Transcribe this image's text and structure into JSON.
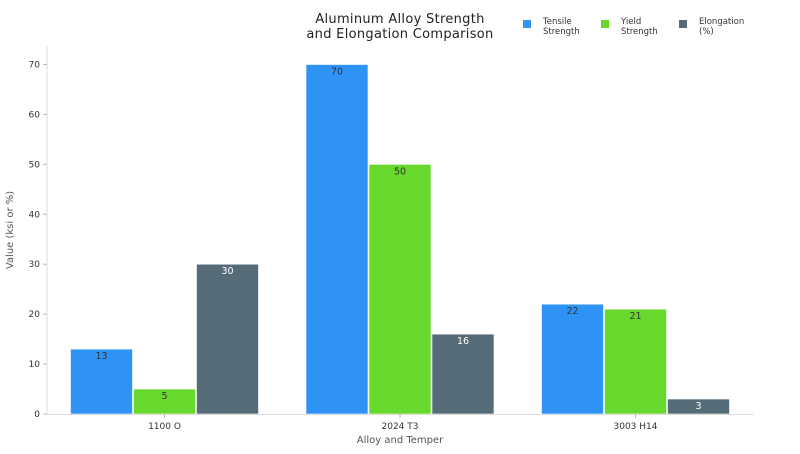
{
  "chart_data": {
    "type": "bar",
    "title_lines": [
      "Aluminum Alloy Strength",
      "and Elongation Comparison"
    ],
    "xlabel": "Alloy and Temper",
    "ylabel": "Value (ksi or %)",
    "categories": [
      "1100 O",
      "2024 T3",
      "3003 H14"
    ],
    "ylim": [
      0,
      70
    ],
    "yticks": [
      0,
      10,
      20,
      30,
      40,
      50,
      60,
      70
    ],
    "series": [
      {
        "name_lines": [
          "Tensile",
          "Strength"
        ],
        "color": "#2f93f5",
        "label_color": "#333333",
        "values": [
          13,
          70,
          22
        ]
      },
      {
        "name_lines": [
          "Yield",
          "Strength"
        ],
        "color": "#66d92c",
        "label_color": "#333333",
        "values": [
          5,
          50,
          21
        ]
      },
      {
        "name_lines": [
          "Elongation",
          "(%)"
        ],
        "color": "#556b78",
        "label_color": "#ffffff",
        "values": [
          30,
          16,
          3
        ]
      }
    ],
    "legend_position": "top-right",
    "grid": false
  }
}
